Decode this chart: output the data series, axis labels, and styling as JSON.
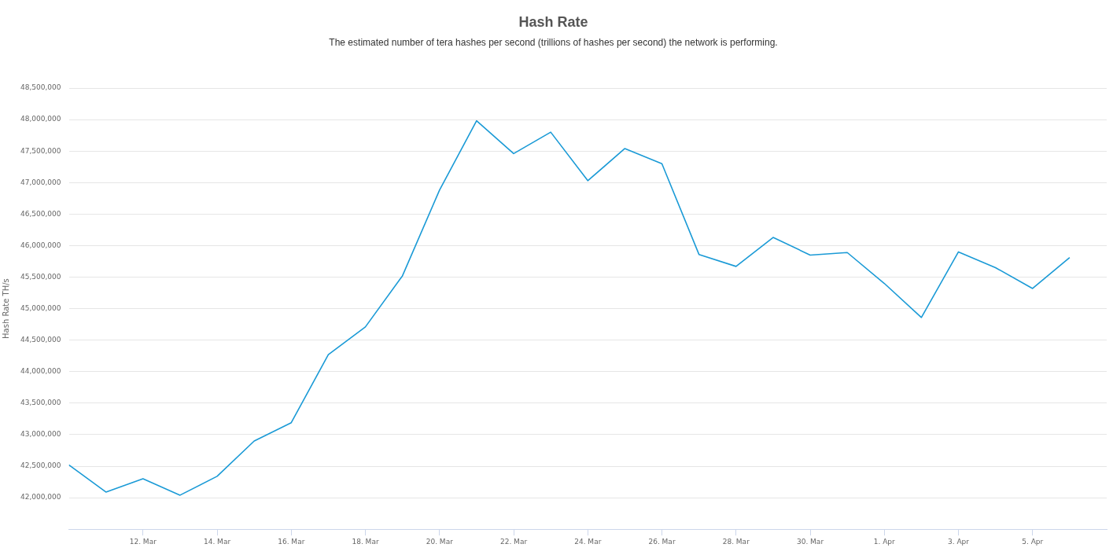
{
  "chart_data": {
    "type": "line",
    "title": "Hash Rate",
    "subtitle": "The estimated number of tera hashes per second (trillions of hashes per second) the network is performing.",
    "ylabel": "Hash Rate TH/s",
    "x": [
      "--03-10",
      "--03-11",
      "--03-12",
      "--03-13",
      "--03-14",
      "--03-15",
      "--03-16",
      "--03-17",
      "--03-18",
      "--03-19",
      "--03-20",
      "--03-21",
      "--03-22",
      "--03-23",
      "--03-24",
      "--03-25",
      "--03-26",
      "--03-27",
      "--03-28",
      "--03-29",
      "--03-30",
      "--03-31",
      "--04-01",
      "--04-02",
      "--04-03",
      "--04-04",
      "--04-05",
      "--04-06"
    ],
    "series": [
      {
        "color": "#1a9ad6",
        "values": [
          42520000,
          42090000,
          42300000,
          42040000,
          42340000,
          42900000,
          43190000,
          44270000,
          44710000,
          45520000,
          46880000,
          47980000,
          47460000,
          47800000,
          47030000,
          47540000,
          47300000,
          45860000,
          45670000,
          46130000,
          45850000,
          45890000,
          45400000,
          44860000,
          45900000,
          45650000,
          45320000,
          45810000
        ]
      }
    ],
    "xlim": [
      "--03-10",
      "--04-07"
    ],
    "xticks": [
      {
        "value": "--03-12",
        "label": "12. Mar"
      },
      {
        "value": "--03-14",
        "label": "14. Mar"
      },
      {
        "value": "--03-16",
        "label": "16. Mar"
      },
      {
        "value": "--03-18",
        "label": "18. Mar"
      },
      {
        "value": "--03-20",
        "label": "20. Mar"
      },
      {
        "value": "--03-22",
        "label": "22. Mar"
      },
      {
        "value": "--03-24",
        "label": "24. Mar"
      },
      {
        "value": "--03-26",
        "label": "26. Mar"
      },
      {
        "value": "--03-28",
        "label": "28. Mar"
      },
      {
        "value": "--03-30",
        "label": "30. Mar"
      },
      {
        "value": "--04-01",
        "label": "1. Apr"
      },
      {
        "value": "--04-03",
        "label": "3. Apr"
      },
      {
        "value": "--04-05",
        "label": "5. Apr"
      }
    ],
    "ylim": [
      41500000,
      48500000
    ],
    "yticks": [
      {
        "value": 42000000,
        "label": "42,000,000"
      },
      {
        "value": 42500000,
        "label": "42,500,000"
      },
      {
        "value": 43000000,
        "label": "43,000,000"
      },
      {
        "value": 43500000,
        "label": "43,500,000"
      },
      {
        "value": 44000000,
        "label": "44,000,000"
      },
      {
        "value": 44500000,
        "label": "44,500,000"
      },
      {
        "value": 45000000,
        "label": "45,000,000"
      },
      {
        "value": 45500000,
        "label": "45,500,000"
      },
      {
        "value": 46000000,
        "label": "46,000,000"
      },
      {
        "value": 46500000,
        "label": "46,500,000"
      },
      {
        "value": 47000000,
        "label": "47,000,000"
      },
      {
        "value": 47500000,
        "label": "47,500,000"
      },
      {
        "value": 48000000,
        "label": "48,000,000"
      },
      {
        "value": 48500000,
        "label": "48,500,000"
      }
    ],
    "grid": "y",
    "legend": false,
    "marker": "none",
    "line_style": "solid"
  }
}
